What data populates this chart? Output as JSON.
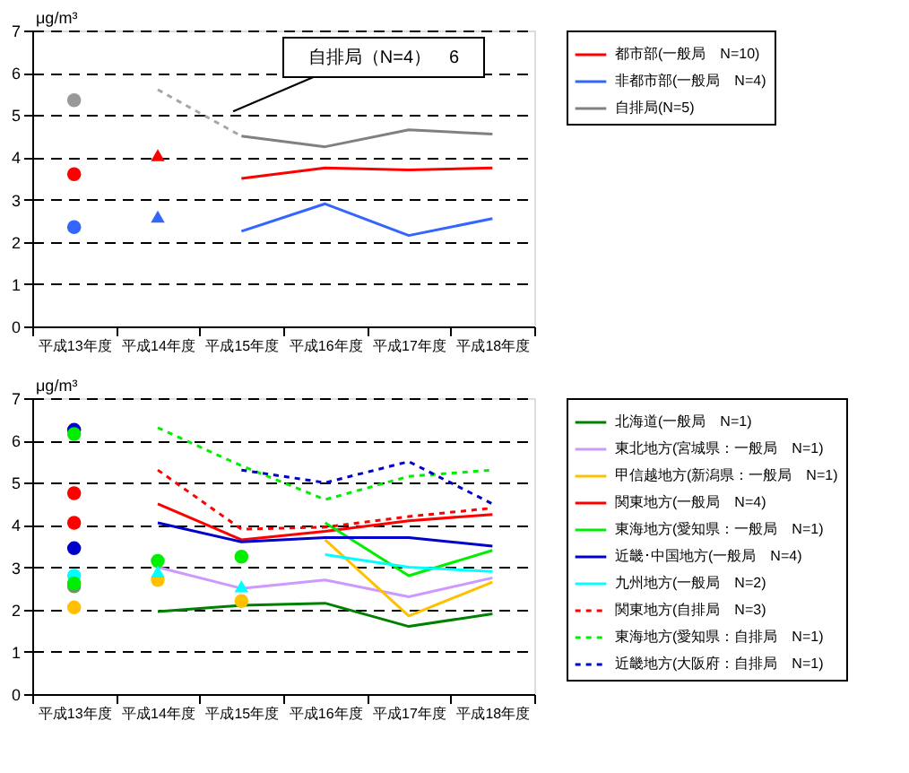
{
  "chart_data": [
    {
      "type": "line",
      "categories": [
        "平成13年度",
        "平成14年度",
        "平成15年度",
        "平成16年度",
        "平成17年度",
        "平成18年度"
      ],
      "ylabel": "μg/m³",
      "ylim": [
        0,
        7
      ],
      "yticks": [
        0,
        1,
        2,
        3,
        4,
        5,
        6,
        7
      ],
      "grid": "y",
      "legend": "right",
      "annotations": [
        "自排局（N=4）　6"
      ],
      "series": [
        {
          "name": "都市部(一般局　N=10)",
          "color": "#ff0000",
          "type": "line",
          "line_style": "solid",
          "values": [
            null,
            null,
            3.5,
            3.75,
            3.7,
            3.75
          ]
        },
        {
          "name": "非都市部(一般局　N=4)",
          "color": "#3366ff",
          "type": "line",
          "line_style": "solid",
          "values": [
            null,
            null,
            2.25,
            2.9,
            2.15,
            2.55
          ]
        },
        {
          "name": "自排局(N=5)",
          "color": "#808080",
          "type": "line",
          "line_style": "solid",
          "values": [
            null,
            null,
            4.5,
            4.25,
            4.65,
            4.55
          ]
        },
        {
          "color": "#a6a6a6",
          "type": "line",
          "line_style": "dotted",
          "values": [
            null,
            5.6,
            4.5,
            null,
            null,
            null
          ]
        },
        {
          "color": "#ff0000",
          "type": "scatter",
          "marker": "circle",
          "values": [
            3.6,
            null,
            null,
            null,
            null,
            null
          ]
        },
        {
          "color": "#3366ff",
          "type": "scatter",
          "marker": "circle",
          "values": [
            2.35,
            null,
            null,
            null,
            null,
            null
          ]
        },
        {
          "color": "#999999",
          "type": "scatter",
          "marker": "circle",
          "values": [
            5.35,
            null,
            null,
            null,
            null,
            null
          ]
        },
        {
          "color": "#ff0000",
          "type": "scatter",
          "marker": "triangle",
          "values": [
            null,
            4.05,
            null,
            null,
            null,
            null
          ]
        },
        {
          "color": "#3366ff",
          "type": "scatter",
          "marker": "triangle",
          "values": [
            null,
            2.6,
            null,
            null,
            null,
            null
          ]
        }
      ]
    },
    {
      "type": "line",
      "categories": [
        "平成13年度",
        "平成14年度",
        "平成15年度",
        "平成16年度",
        "平成17年度",
        "平成18年度"
      ],
      "ylabel": "μg/m³",
      "ylim": [
        0,
        7
      ],
      "yticks": [
        0,
        1,
        2,
        3,
        4,
        5,
        6,
        7
      ],
      "grid": "y",
      "legend": "right",
      "series": [
        {
          "name": "北海道(一般局　N=1)",
          "color": "#008000",
          "type": "line",
          "line_style": "solid",
          "values": [
            null,
            1.95,
            2.1,
            2.15,
            1.6,
            1.9
          ]
        },
        {
          "name": "東北地方(宮城県：一般局　N=1)",
          "color": "#cc99ff",
          "type": "line",
          "line_style": "solid",
          "values": [
            null,
            3.0,
            2.5,
            2.7,
            2.3,
            2.75
          ]
        },
        {
          "name": "甲信越地方(新潟県：一般局　N=1)",
          "color": "#ffc000",
          "type": "line",
          "line_style": "solid",
          "values": [
            null,
            null,
            null,
            3.65,
            1.85,
            2.65
          ]
        },
        {
          "name": "関東地方(一般局　N=4)",
          "color": "#ff0000",
          "type": "line",
          "line_style": "solid",
          "values": [
            null,
            4.5,
            3.65,
            3.85,
            4.1,
            4.25
          ]
        },
        {
          "name": "東海地方(愛知県：一般局　N=1)",
          "color": "#00ee00",
          "type": "line",
          "line_style": "solid",
          "values": [
            null,
            null,
            null,
            4.05,
            2.8,
            3.4
          ]
        },
        {
          "name": "近畿･中国地方(一般局　N=4)",
          "color": "#0000cc",
          "type": "line",
          "line_style": "solid",
          "values": [
            null,
            4.05,
            3.6,
            3.7,
            3.7,
            3.5
          ]
        },
        {
          "name": "九州地方(一般局　N=2)",
          "color": "#00ffff",
          "type": "line",
          "line_style": "solid",
          "values": [
            null,
            null,
            null,
            3.3,
            3.0,
            2.9
          ]
        },
        {
          "name": "関東地方(自排局　N=3)",
          "color": "#ff0000",
          "type": "line",
          "line_style": "dotted",
          "values": [
            null,
            5.3,
            3.9,
            3.95,
            4.2,
            4.4
          ]
        },
        {
          "name": "東海地方(愛知県：自排局　N=1)",
          "color": "#00ee00",
          "type": "line",
          "line_style": "dotted",
          "values": [
            null,
            6.3,
            5.4,
            4.6,
            5.15,
            5.3
          ]
        },
        {
          "name": "近畿地方(大阪府：自排局　N=1)",
          "color": "#0000cc",
          "type": "line",
          "line_style": "dotted",
          "values": [
            null,
            null,
            5.3,
            5.0,
            5.5,
            4.5
          ]
        },
        {
          "color": "#0000cc",
          "type": "scatter",
          "marker": "circle",
          "values": [
            6.25,
            null,
            null,
            null,
            null,
            null
          ]
        },
        {
          "color": "#00ee00",
          "type": "scatter",
          "marker": "circle",
          "values": [
            6.15,
            null,
            null,
            null,
            null,
            null
          ]
        },
        {
          "color": "#ff0000",
          "type": "scatter",
          "marker": "circle",
          "values": [
            4.75,
            null,
            null,
            null,
            null,
            null
          ]
        },
        {
          "color": "#ff0000",
          "type": "scatter",
          "marker": "circle",
          "values": [
            4.05,
            null,
            null,
            null,
            null,
            null
          ]
        },
        {
          "color": "#0000cc",
          "type": "scatter",
          "marker": "circle",
          "values": [
            3.45,
            null,
            null,
            null,
            null,
            null
          ]
        },
        {
          "color": "#00ffff",
          "type": "scatter",
          "marker": "circle",
          "values": [
            2.8,
            null,
            null,
            null,
            null,
            null
          ]
        },
        {
          "color": "#669966",
          "type": "scatter",
          "marker": "circle",
          "values": [
            2.55,
            null,
            null,
            null,
            null,
            null
          ]
        },
        {
          "color": "#00ee00",
          "type": "scatter",
          "marker": "circle",
          "values": [
            2.62,
            3.15,
            3.25,
            null,
            null,
            null
          ]
        },
        {
          "color": "#ffc000",
          "type": "scatter",
          "marker": "circle",
          "values": [
            2.05,
            2.7,
            2.2,
            null,
            null,
            null
          ]
        },
        {
          "color": "#00ffff",
          "type": "scatter",
          "marker": "triangle",
          "values": [
            null,
            2.9,
            2.55,
            null,
            null,
            null
          ]
        }
      ]
    }
  ]
}
